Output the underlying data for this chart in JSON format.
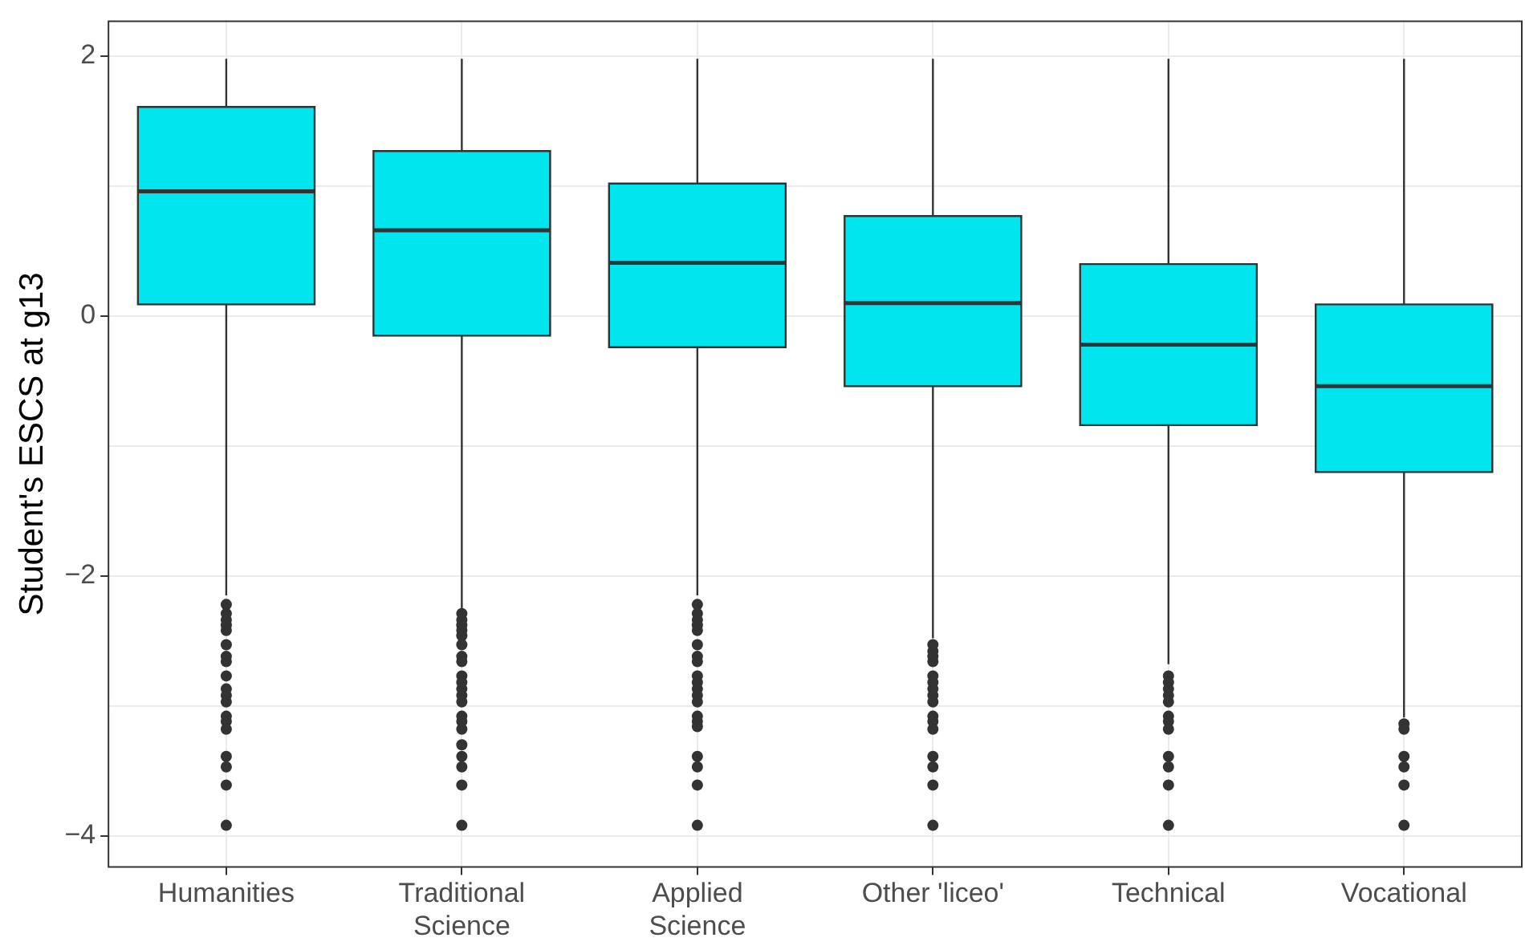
{
  "chart_data": {
    "type": "box",
    "ylabel": "Student's ESCS at g13",
    "categories": [
      "Humanities",
      "Traditional\nScience",
      "Applied\nScience",
      "Other 'liceo'",
      "Technical",
      "Vocational"
    ],
    "color": "#00e5ee",
    "boxes": [
      {
        "low": -2.15,
        "q1": 0.09,
        "median": 0.96,
        "q3": 1.61,
        "high": 1.98,
        "outliers": [
          -2.22,
          -2.29,
          -2.34,
          -2.38,
          -2.42,
          -2.53,
          -2.62,
          -2.66,
          -2.77,
          -2.87,
          -2.92,
          -2.97,
          -3.08,
          -3.12,
          -3.18,
          -3.39,
          -3.47,
          -3.61,
          -3.92
        ]
      },
      {
        "low": -2.25,
        "q1": -0.15,
        "median": 0.66,
        "q3": 1.27,
        "high": 1.98,
        "outliers": [
          -2.29,
          -2.34,
          -2.38,
          -2.42,
          -2.46,
          -2.53,
          -2.62,
          -2.66,
          -2.77,
          -2.82,
          -2.87,
          -2.92,
          -2.97,
          -3.08,
          -3.12,
          -3.18,
          -3.3,
          -3.39,
          -3.47,
          -3.61,
          -3.92
        ]
      },
      {
        "low": -2.15,
        "q1": -0.24,
        "median": 0.41,
        "q3": 1.02,
        "high": 1.98,
        "outliers": [
          -2.22,
          -2.29,
          -2.34,
          -2.38,
          -2.42,
          -2.53,
          -2.62,
          -2.66,
          -2.77,
          -2.82,
          -2.87,
          -2.92,
          -2.97,
          -3.08,
          -3.12,
          -3.16,
          -3.39,
          -3.47,
          -3.61,
          -3.92
        ]
      },
      {
        "low": -2.48,
        "q1": -0.54,
        "median": 0.1,
        "q3": 0.77,
        "high": 1.98,
        "outliers": [
          -2.53,
          -2.58,
          -2.62,
          -2.66,
          -2.77,
          -2.82,
          -2.87,
          -2.92,
          -2.97,
          -3.08,
          -3.12,
          -3.18,
          -3.39,
          -3.47,
          -3.61,
          -3.92
        ]
      },
      {
        "low": -2.68,
        "q1": -0.84,
        "median": -0.22,
        "q3": 0.4,
        "high": 1.98,
        "outliers": [
          -2.77,
          -2.82,
          -2.87,
          -2.92,
          -2.97,
          -3.08,
          -3.12,
          -3.18,
          -3.39,
          -3.47,
          -3.61,
          -3.92
        ]
      },
      {
        "low": -3.09,
        "q1": -1.2,
        "median": -0.54,
        "q3": 0.09,
        "high": 1.98,
        "outliers": [
          -3.14,
          -3.18,
          -3.39,
          -3.47,
          -3.61,
          -3.92
        ]
      }
    ],
    "ylim": [
      -4.24,
      2.27
    ],
    "yticks": [
      -4,
      {
        "value": -3,
        "label": null
      },
      -2,
      {
        "value": -1,
        "label": null
      },
      0,
      {
        "value": 1,
        "label": null
      },
      2
    ],
    "grid": true
  }
}
